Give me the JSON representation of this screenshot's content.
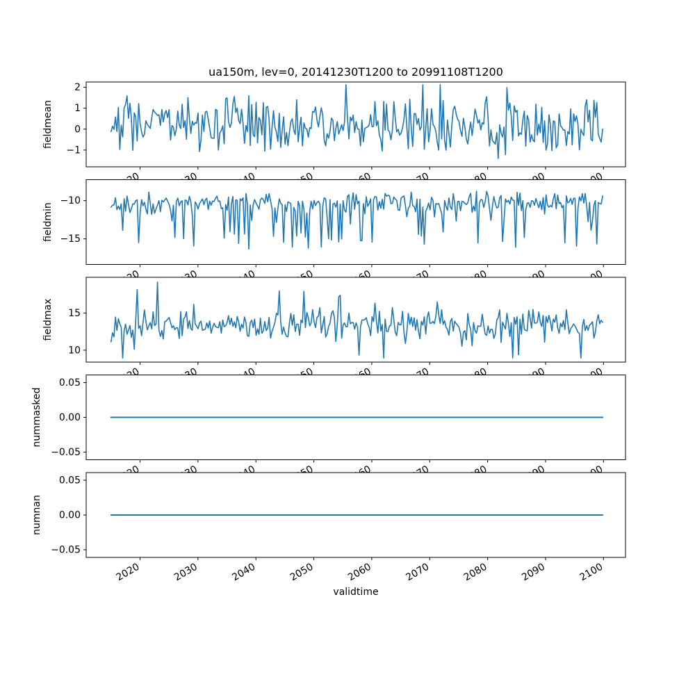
{
  "title": "ua150m, lev=0, 20141230T1200 to 20991108T1200",
  "xlabel": "validtime",
  "colors": {
    "line": "#1f77b4",
    "axes": "#000000",
    "text": "#000000",
    "background": "#ffffff"
  },
  "chart_data": {
    "type": "line",
    "title": "ua150m, lev=0, 20141230T1200 to 20991108T1200",
    "xlabel": "validtime",
    "legend": false,
    "grid": false,
    "x": {
      "start": 2015.0,
      "end": 2099.85,
      "lim": [
        2010.7,
        2103.8
      ],
      "ticks": [
        2020,
        2030,
        2040,
        2050,
        2060,
        2070,
        2080,
        2090,
        2100
      ],
      "tick_labels": [
        "2020",
        "2030",
        "2040",
        "2050",
        "2060",
        "2070",
        "2080",
        "2090",
        "2100"
      ],
      "tick_rotation_deg": 30
    },
    "subplots": [
      {
        "ylabel": "fieldmean",
        "ylim": [
          -1.8,
          2.25
        ],
        "yticks": [
          2,
          1,
          0,
          -1
        ],
        "ytick_labels": [
          "2",
          "1",
          "0",
          "−1"
        ],
        "series": {
          "name": "fieldmean",
          "n_points": 340,
          "approx_mean": 0.2,
          "approx_min": -1.55,
          "approx_max": 2.1,
          "gen": {
            "kind": "noise",
            "seed": 7,
            "base": 0.15,
            "std": 0.62,
            "upProb": 0.06,
            "upA": 0.6,
            "upB": 1.2,
            "downProb": 0.05,
            "downA": 0.4,
            "downB": 0.9,
            "clamp": [
              -1.55,
              2.12
            ]
          }
        }
      },
      {
        "ylabel": "fieldmin",
        "ylim": [
          -18.35,
          -7.25
        ],
        "yticks": [
          -10,
          -15
        ],
        "ytick_labels": [
          "−10",
          "−15"
        ],
        "series": {
          "name": "fieldmin",
          "n_points": 340,
          "approx_mean": -11.0,
          "approx_min": -17.6,
          "approx_max": -8.8,
          "gen": {
            "kind": "noise",
            "seed": 17,
            "base": -10.3,
            "std": 0.75,
            "upProb": 0.02,
            "upA": 0.3,
            "upB": 0.5,
            "downProb": 0.18,
            "downA": 1.0,
            "downB": 4.8,
            "clamp": [
              -17.6,
              -8.75
            ]
          }
        }
      },
      {
        "ylabel": "fieldmax",
        "ylim": [
          8.4,
          19.8
        ],
        "yticks": [
          15,
          10
        ],
        "ytick_labels": [
          "15",
          "10"
        ],
        "series": {
          "name": "fieldmax",
          "n_points": 340,
          "approx_mean": 13.6,
          "approx_min": 9.0,
          "approx_max": 19.3,
          "gen": {
            "kind": "noise",
            "seed": 27,
            "base": 13.4,
            "std": 0.95,
            "upProb": 0.06,
            "upA": 1.0,
            "upB": 4.4,
            "downProb": 0.04,
            "downA": 0.8,
            "downB": 3.0,
            "clamp": [
              8.95,
              19.35
            ]
          }
        }
      },
      {
        "ylabel": "nummasked",
        "ylim": [
          -0.061,
          0.061
        ],
        "yticks": [
          0.05,
          0.0,
          -0.05
        ],
        "ytick_labels": [
          "0.05",
          "0.00",
          "−0.05"
        ],
        "series": {
          "name": "nummasked",
          "constant_value": 0,
          "gen": {
            "kind": "flat",
            "value": 0
          }
        }
      },
      {
        "ylabel": "numnan",
        "ylim": [
          -0.061,
          0.061
        ],
        "yticks": [
          0.05,
          0.0,
          -0.05
        ],
        "ytick_labels": [
          "0.05",
          "0.00",
          "−0.05"
        ],
        "series": {
          "name": "numnan",
          "constant_value": 0,
          "gen": {
            "kind": "flat",
            "value": 0
          }
        }
      }
    ]
  }
}
